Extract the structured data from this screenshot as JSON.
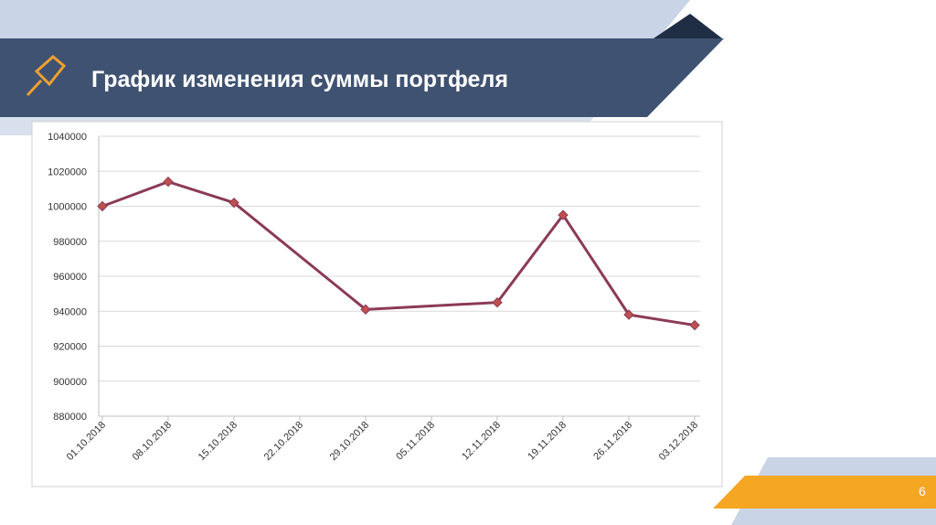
{
  "slide": {
    "title": "График изменения суммы портфеля",
    "page_number": "6"
  },
  "chart_data": {
    "type": "line",
    "x": [
      "01.10.2018",
      "08.10.2018",
      "15.10.2018",
      "29.10.2018",
      "12.11.2018",
      "19.11.2018",
      "26.11.2018",
      "03.12.2018"
    ],
    "series": [
      {
        "color": "#8b3a57",
        "marker_color": "#c0504d",
        "values": [
          1000000,
          1014000,
          1002000,
          941000,
          945000,
          995000,
          938000,
          932000
        ]
      }
    ],
    "xlim": [
      "01.10.2018",
      "03.12.2018"
    ],
    "xticks": [
      "01.10.2018",
      "08.10.2018",
      "15.10.2018",
      "22.10.2018",
      "29.10.2018",
      "05.11.2018",
      "12.11.2018",
      "19.11.2018",
      "26.11.2018",
      "03.12.2018"
    ],
    "ylim": [
      880000,
      1040000
    ],
    "yticks": [
      880000,
      900000,
      920000,
      940000,
      960000,
      980000,
      1000000,
      1020000,
      1040000
    ],
    "grid": true
  }
}
